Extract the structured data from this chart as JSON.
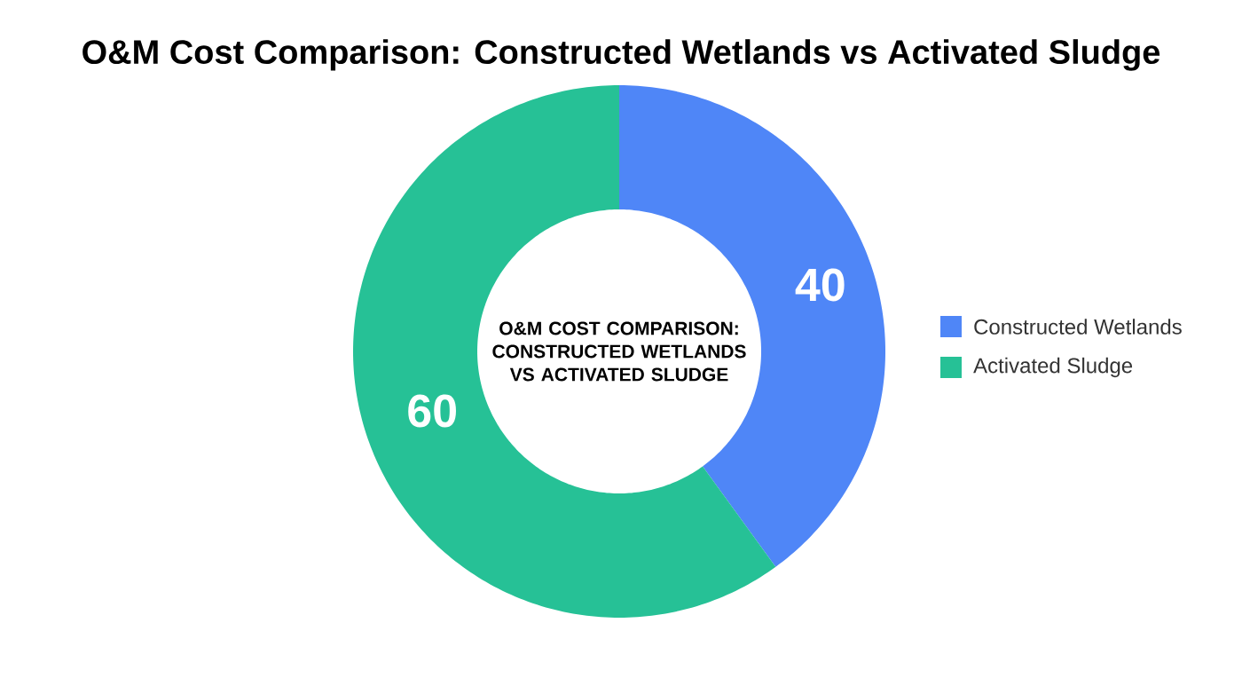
{
  "chart_data": {
    "type": "donut",
    "title": "O&M Cost Comparison: Constructed Wetlands vs Activated Sludge",
    "annotations": [
      "O&M COST COMPARISON: CONSTRUCTED WETLANDS VS ACTIVATED SLUDGE"
    ],
    "categories": [
      "Constructed Wetlands",
      "Activated Sludge"
    ],
    "values": [
      40,
      60
    ],
    "colors": [
      "#4f86f7",
      "#26c196"
    ],
    "data_labels": true,
    "legend": "right"
  }
}
